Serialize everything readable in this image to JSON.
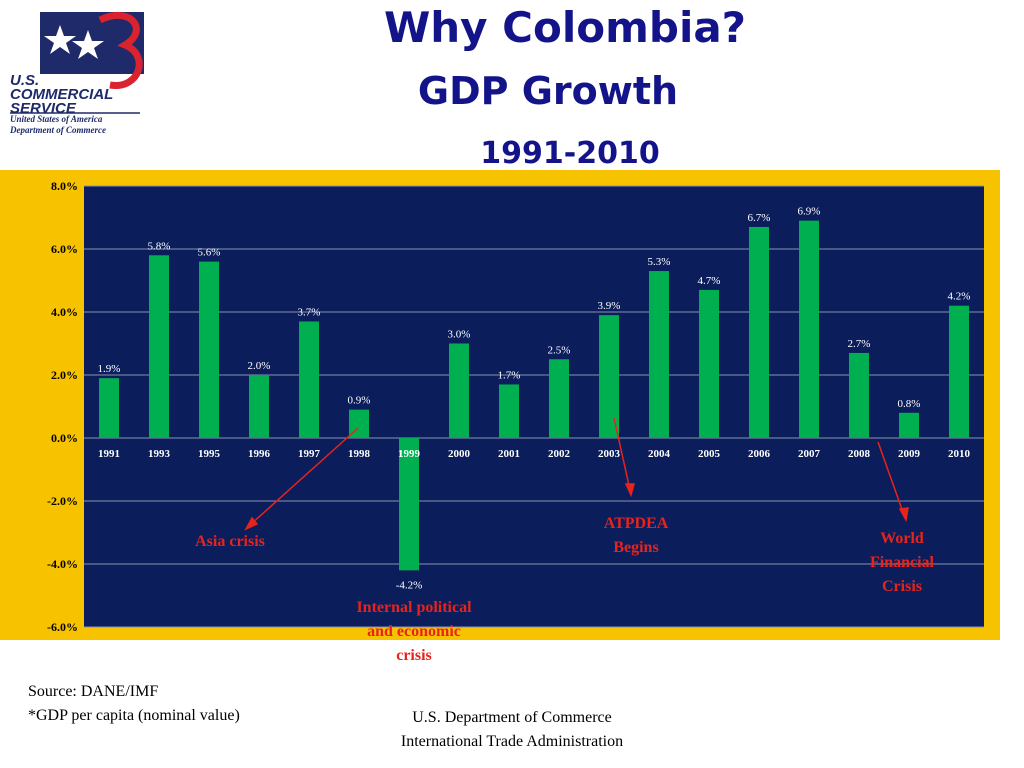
{
  "logo": {
    "name": "U.S. COMMERCIAL SERVICE",
    "line1": "United States of America",
    "line2": "Department of Commerce"
  },
  "chart_data": {
    "type": "bar",
    "title": "Why Colombia?",
    "subtitle": "GDP Growth",
    "period": "1991-2010",
    "categories": [
      "1991",
      "1993",
      "1995",
      "1996",
      "1997",
      "1998",
      "1999",
      "2000",
      "2001",
      "2002",
      "2003",
      "2004",
      "2005",
      "2006",
      "2007",
      "2008",
      "2009",
      "2010"
    ],
    "values": [
      1.9,
      5.8,
      5.6,
      2.0,
      3.7,
      0.9,
      -4.2,
      3.0,
      1.7,
      2.5,
      3.9,
      5.3,
      4.7,
      6.7,
      6.9,
      2.7,
      0.8,
      4.2
    ],
    "value_labels": [
      "1.9%",
      "5.8%",
      "5.6%",
      "2.0%",
      "3.7%",
      "0.9%",
      "-4.2%",
      "3.0%",
      "1.7%",
      "2.5%",
      "3.9%",
      "5.3%",
      "4.7%",
      "6.7%",
      "6.9%",
      "2.7%",
      "0.8%",
      "4.2%"
    ],
    "color": "#00b050",
    "ylim": [
      -6,
      8
    ],
    "yticks": [
      {
        "value": 8,
        "label": "8.0%"
      },
      {
        "value": 6,
        "label": "6.0%"
      },
      {
        "value": 4,
        "label": "4.0%"
      },
      {
        "value": 2,
        "label": "2.0%"
      },
      {
        "value": 0,
        "label": "0.0%"
      },
      {
        "value": -2,
        "label": "-2.0%"
      },
      {
        "value": -4,
        "label": "-4.0%"
      },
      {
        "value": -6,
        "label": "-6.0%"
      }
    ],
    "grid": true,
    "annotations": [
      "Asia crisis",
      "Internal political and economic crisis",
      "ATPDEA Begins",
      "World Financial Crisis"
    ]
  },
  "footer": {
    "source": "Source: DANE/IMF",
    "note": "*GDP per capita (nominal value)",
    "org1": "U.S. Department of Commerce",
    "org2": "International Trade Administration"
  }
}
